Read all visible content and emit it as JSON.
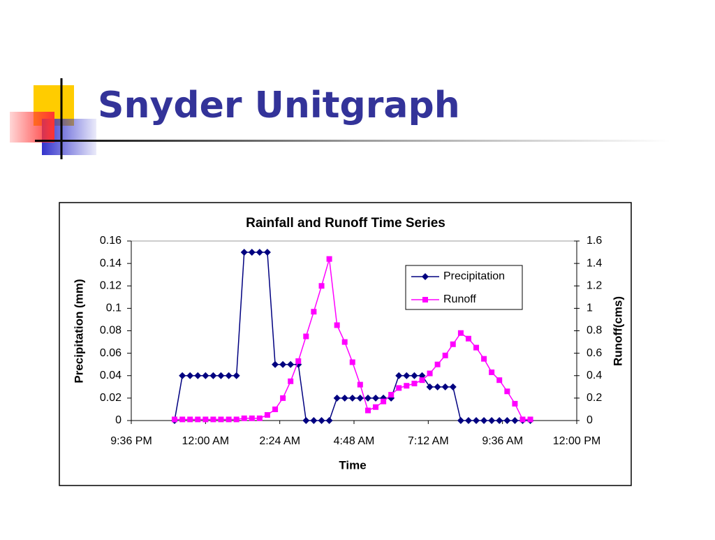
{
  "slide": {
    "title": "Snyder Unitgraph"
  },
  "chart_data": {
    "type": "line",
    "title": "Rainfall and Runoff Time Series",
    "x_label": "Time",
    "y_label": "Precipitation (mm)",
    "y2_label": "Runoff(cms)",
    "x": [
      0.9583,
      0.9688,
      0.9792,
      0.9896,
      1.0,
      1.0104,
      1.0208,
      1.0313,
      1.0417,
      1.0521,
      1.0625,
      1.0729,
      1.0833,
      1.0938,
      1.1042,
      1.1146,
      1.125,
      1.1354,
      1.1458,
      1.1563,
      1.1667,
      1.1771,
      1.1875,
      1.1979,
      1.2083,
      1.2188,
      1.2292,
      1.2396,
      1.25,
      1.2604,
      1.2708,
      1.2813,
      1.2917,
      1.3021,
      1.3125,
      1.3229,
      1.3333,
      1.3438,
      1.3542,
      1.3646,
      1.375,
      1.3854,
      1.3958,
      1.4063,
      1.4167,
      1.4271,
      1.4375
    ],
    "series": [
      {
        "name": "Precipitation",
        "color": "#000080",
        "marker": "diamond",
        "axis": "y",
        "values": [
          0,
          0.04,
          0.04,
          0.04,
          0.04,
          0.04,
          0.04,
          0.04,
          0.04,
          0.15,
          0.15,
          0.15,
          0.15,
          0.05,
          0.05,
          0.05,
          0.05,
          0,
          0,
          0,
          0,
          0.02,
          0.02,
          0.02,
          0.02,
          0.02,
          0.02,
          0.02,
          0.02,
          0.04,
          0.04,
          0.04,
          0.04,
          0.03,
          0.03,
          0.03,
          0.03,
          0,
          0,
          0,
          0,
          0,
          0,
          0,
          0,
          0,
          0
        ]
      },
      {
        "name": "Runoff",
        "color": "#ff00ff",
        "marker": "square",
        "axis": "y2",
        "values": [
          0.01,
          0.01,
          0.01,
          0.01,
          0.01,
          0.01,
          0.01,
          0.01,
          0.01,
          0.02,
          0.02,
          0.02,
          0.05,
          0.1,
          0.2,
          0.35,
          0.53,
          0.75,
          0.97,
          1.2,
          1.44,
          0.85,
          0.7,
          0.52,
          0.32,
          0.09,
          0.12,
          0.17,
          0.23,
          0.29,
          0.31,
          0.33,
          0.36,
          0.42,
          0.5,
          0.58,
          0.68,
          0.78,
          0.73,
          0.65,
          0.55,
          0.43,
          0.36,
          0.26,
          0.15,
          0.01,
          0.01
        ]
      }
    ],
    "xlim": [
      0.9,
      1.5
    ],
    "xticks": [
      {
        "value": 0.9,
        "label": "9:36 PM"
      },
      {
        "value": 1.0,
        "label": "12:00 AM"
      },
      {
        "value": 1.1,
        "label": "2:24 AM"
      },
      {
        "value": 1.2,
        "label": "4:48 AM"
      },
      {
        "value": 1.3,
        "label": "7:12 AM"
      },
      {
        "value": 1.4,
        "label": "9:36 AM"
      },
      {
        "value": 1.5,
        "label": "12:00 PM"
      }
    ],
    "ylim": [
      0,
      0.16
    ],
    "yticks": [
      0,
      0.02,
      0.04,
      0.06,
      0.08,
      0.1,
      0.12,
      0.14,
      0.16
    ],
    "y2lim": [
      0,
      1.6
    ],
    "y2ticks": [
      0,
      0.2,
      0.4,
      0.6,
      0.8,
      1,
      1.2,
      1.4,
      1.6
    ],
    "grid": false,
    "legend": "top-right"
  }
}
